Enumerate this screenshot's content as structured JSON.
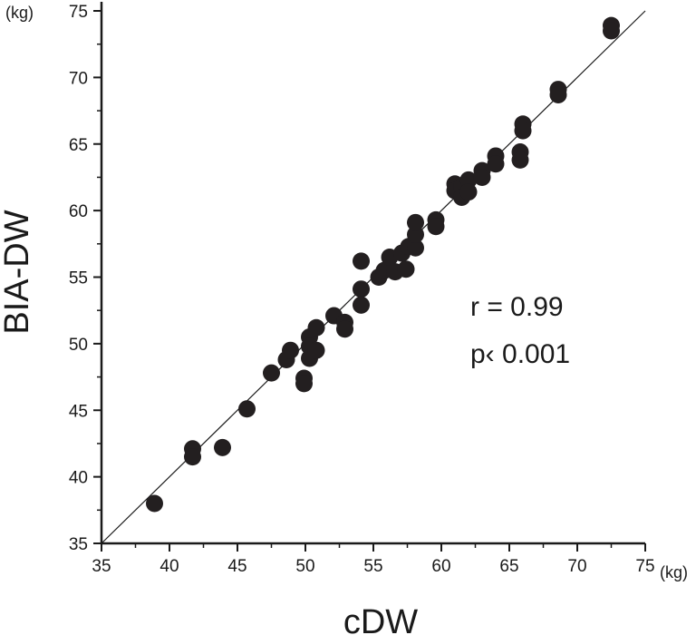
{
  "chart_data": {
    "type": "scatter",
    "xlabel": "cDW",
    "ylabel": "BIA-DW",
    "x_unit": "(kg)",
    "y_unit": "(kg)",
    "xlim": [
      35,
      75
    ],
    "ylim": [
      35,
      75
    ],
    "x_ticks": [
      "35",
      "40",
      "45",
      "50",
      "55",
      "60",
      "65",
      "70",
      "75"
    ],
    "y_ticks": [
      "35",
      "40",
      "45",
      "50",
      "55",
      "60",
      "65",
      "70",
      "75"
    ],
    "grid": false,
    "reference_line": "identity",
    "annotations": [
      "r = 0.99",
      "p‹ 0.001"
    ],
    "point_color": "#231f20",
    "points": [
      [
        38.9,
        38.0
      ],
      [
        41.7,
        42.1
      ],
      [
        41.7,
        41.5
      ],
      [
        43.9,
        42.2
      ],
      [
        45.7,
        45.1
      ],
      [
        47.5,
        47.8
      ],
      [
        48.6,
        48.8
      ],
      [
        48.9,
        49.5
      ],
      [
        49.9,
        47.4
      ],
      [
        49.9,
        47.0
      ],
      [
        50.3,
        50.5
      ],
      [
        50.3,
        49.8
      ],
      [
        50.3,
        48.9
      ],
      [
        50.8,
        51.2
      ],
      [
        50.8,
        49.5
      ],
      [
        52.1,
        52.1
      ],
      [
        52.9,
        51.6
      ],
      [
        52.9,
        51.1
      ],
      [
        54.1,
        56.2
      ],
      [
        54.1,
        54.1
      ],
      [
        54.1,
        52.9
      ],
      [
        55.4,
        55.0
      ],
      [
        55.8,
        55.5
      ],
      [
        56.2,
        56.5
      ],
      [
        56.6,
        55.4
      ],
      [
        57.1,
        56.8
      ],
      [
        57.4,
        55.6
      ],
      [
        57.6,
        57.3
      ],
      [
        58.1,
        57.2
      ],
      [
        58.1,
        58.2
      ],
      [
        58.1,
        59.1
      ],
      [
        59.6,
        59.3
      ],
      [
        59.6,
        58.8
      ],
      [
        61.0,
        62.0
      ],
      [
        61.0,
        61.5
      ],
      [
        61.5,
        61.8
      ],
      [
        61.5,
        61.0
      ],
      [
        62.0,
        62.3
      ],
      [
        62.0,
        61.4
      ],
      [
        63.0,
        63.0
      ],
      [
        63.0,
        62.5
      ],
      [
        64.0,
        64.1
      ],
      [
        64.0,
        63.5
      ],
      [
        65.8,
        64.4
      ],
      [
        65.8,
        63.8
      ],
      [
        66.0,
        66.5
      ],
      [
        66.0,
        66.0
      ],
      [
        68.6,
        69.1
      ],
      [
        68.6,
        68.7
      ],
      [
        72.5,
        73.9
      ],
      [
        72.5,
        73.5
      ]
    ]
  }
}
